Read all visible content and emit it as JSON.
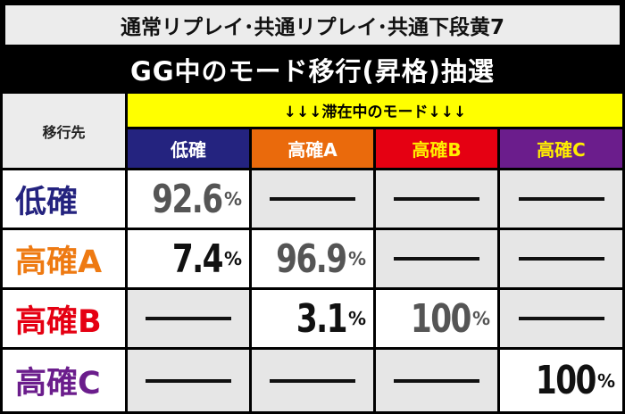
{
  "title_line1": "通常リプレイ･共通リプレイ･共通下段黄7",
  "title_line2": "GG中のモード移行(昇格)抽選",
  "header": {
    "left_label": "移行先",
    "current_mode_label": "↓↓↓滞在中のモード↓↓↓",
    "columns": [
      "低確",
      "高確A",
      "高確B",
      "高確C"
    ]
  },
  "rows": [
    {
      "label": "低確",
      "values": [
        "92.6",
        "—",
        "—",
        "—"
      ]
    },
    {
      "label": "高確A",
      "values": [
        "7.4",
        "96.9",
        "—",
        "—"
      ]
    },
    {
      "label": "高確B",
      "values": [
        "—",
        "3.1",
        "100",
        "—"
      ]
    },
    {
      "label": "高確C",
      "values": [
        "—",
        "—",
        "—",
        "100"
      ]
    }
  ],
  "percent_sign": "%",
  "colors": {
    "col_low": "#24237f",
    "col_a": "#ea6a0c",
    "col_b": "#e50012",
    "col_c": "#6b1d8c",
    "row_low": "#24237f",
    "row_a": "#ee7a12",
    "row_b": "#e50012",
    "row_c": "#6b1d8c"
  }
}
